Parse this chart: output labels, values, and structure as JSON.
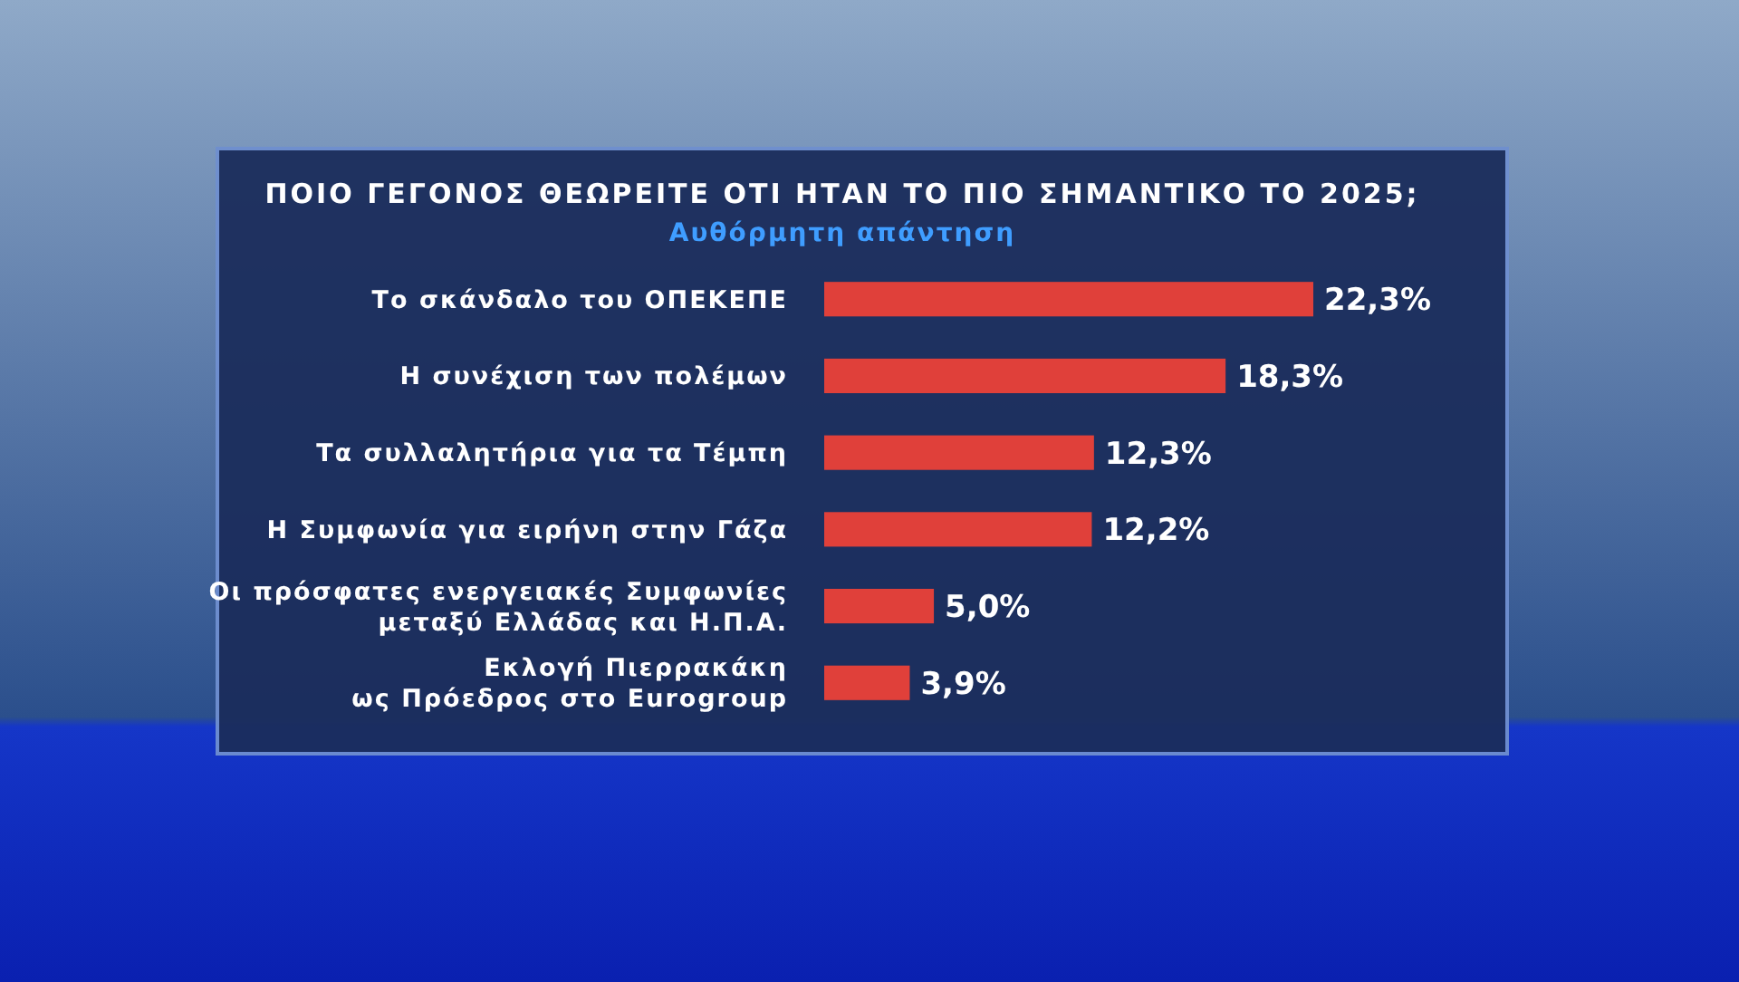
{
  "chart_data": {
    "type": "bar",
    "orientation": "horizontal",
    "title": "ΠΟΙΟ ΓΕΓΟΝΟΣ ΘΕΩΡΕΙΤΕ ΟΤΙ ΗΤΑΝ ΤΟ ΠΙΟ ΣΗΜΑΝΤΙΚΟ ΤΟ 2025;",
    "subtitle": "Αυθόρμητη απάντηση",
    "categories": [
      "Το σκάνδαλο του ΟΠΕΚΕΠΕ",
      "Η συνέχιση των πολέμων",
      "Τα συλλαλητήρια για τα Τέμπη",
      "Η Συμφωνία για ειρήνη στην Γάζα",
      "Οι πρόσφατες ενεργειακές Συμφωνίες\nμεταξύ Ελλάδας και Η.Π.Α.",
      "Εκλογή Πιερρακάκη\nως Πρόεδρος στο Eurogroup"
    ],
    "values": [
      22.3,
      18.3,
      12.3,
      12.2,
      5.0,
      3.9
    ],
    "value_labels": [
      "22,3%",
      "18,3%",
      "12,3%",
      "12,2%",
      "5,0%",
      "3,9%"
    ],
    "color": "#e0403a"
  }
}
